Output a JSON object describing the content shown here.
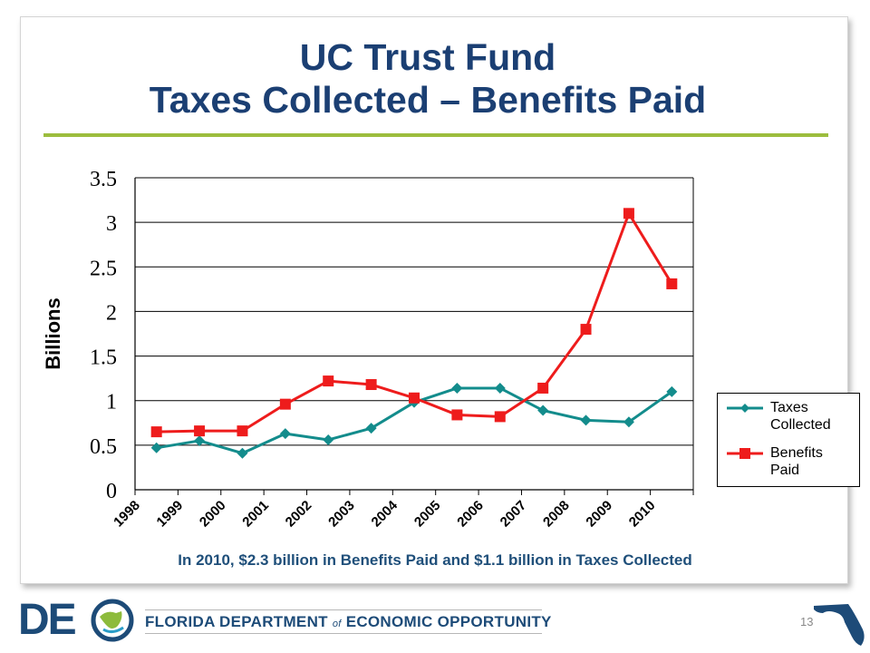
{
  "slide": {
    "title_line1": "UC Trust Fund",
    "title_line2": "Taxes Collected – Benefits Paid",
    "caption": "In 2010, $2.3 billion in Benefits Paid and $1.1 billion in Taxes Collected",
    "page_number": "13"
  },
  "footer": {
    "logo_text": "DE",
    "dept_pre": "FLORIDA DEPARTMENT",
    "dept_of": "of",
    "dept_post": "ECONOMIC OPPORTUNITY"
  },
  "colors": {
    "title": "#1b3f73",
    "rule": "#9cbd3e",
    "taxes": "#138c8c",
    "benefits": "#ee1c1c"
  },
  "icons": [
    "deo-logo-icon",
    "florida-map-icon"
  ],
  "chart_data": {
    "type": "line",
    "title": "",
    "xlabel": "",
    "ylabel": "Billions",
    "categories": [
      "1998",
      "1999",
      "2000",
      "2001",
      "2002",
      "2003",
      "2004",
      "2005",
      "2006",
      "2007",
      "2008",
      "2009",
      "2010"
    ],
    "ylim": [
      0,
      3.5
    ],
    "yticks": [
      "0",
      "0.5",
      "1",
      "1.5",
      "2",
      "2.5",
      "3",
      "3.5"
    ],
    "grid": true,
    "legend_position": "right",
    "series": [
      {
        "name": "Taxes\nCollected",
        "marker": "diamond",
        "color": "#138c8c",
        "values": [
          0.47,
          0.55,
          0.41,
          0.63,
          0.56,
          0.69,
          0.98,
          1.14,
          1.14,
          0.89,
          0.78,
          0.76,
          1.1
        ]
      },
      {
        "name": "Benefits\nPaid",
        "marker": "square",
        "color": "#ee1c1c",
        "values": [
          0.65,
          0.66,
          0.66,
          0.96,
          1.22,
          1.18,
          1.03,
          0.84,
          0.82,
          1.14,
          1.8,
          3.1,
          2.31
        ]
      }
    ]
  }
}
